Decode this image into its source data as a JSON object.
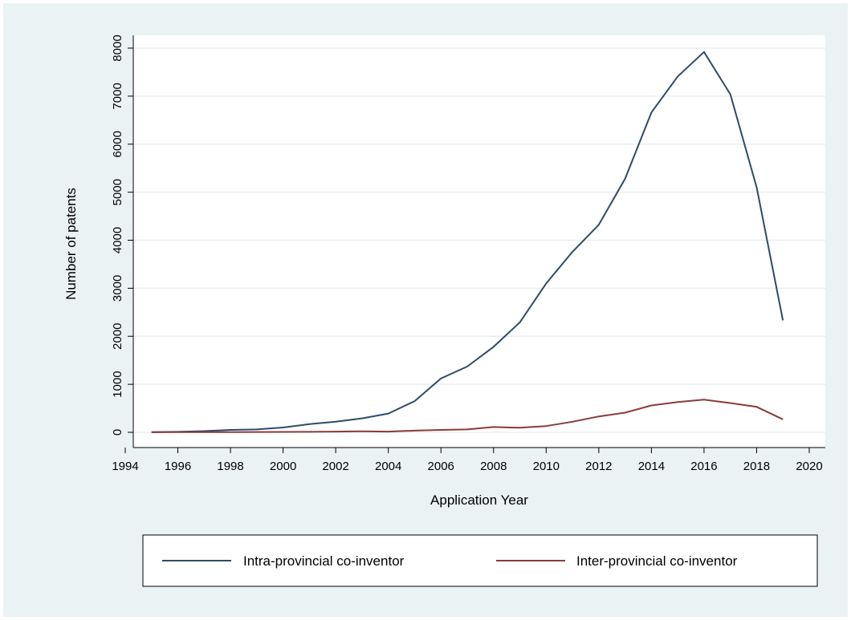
{
  "chart_data": {
    "type": "line",
    "title": "",
    "xlabel": "Application Year",
    "ylabel": "Number of patents",
    "xlim": [
      1994,
      2020
    ],
    "ylim": [
      0,
      8000
    ],
    "xticks": [
      1994,
      1996,
      1998,
      2000,
      2002,
      2004,
      2006,
      2008,
      2010,
      2012,
      2014,
      2016,
      2018,
      2020
    ],
    "yticks": [
      0,
      1000,
      2000,
      3000,
      4000,
      5000,
      6000,
      7000,
      8000
    ],
    "grid": true,
    "legend_position": "bottom",
    "x": [
      1995,
      1996,
      1997,
      1998,
      1999,
      2000,
      2001,
      2002,
      2003,
      2004,
      2005,
      2006,
      2007,
      2008,
      2009,
      2010,
      2011,
      2012,
      2013,
      2014,
      2015,
      2016,
      2017,
      2018,
      2019
    ],
    "series": [
      {
        "name": "Intra-provincial co-inventor",
        "color": "#2e4a6b",
        "values": [
          5,
          10,
          25,
          50,
          60,
          100,
          170,
          220,
          290,
          390,
          650,
          1120,
          1370,
          1780,
          2290,
          3100,
          3760,
          4320,
          5280,
          6660,
          7410,
          7920,
          7040,
          5100,
          2330
        ]
      },
      {
        "name": "Inter-provincial co-inventor",
        "color": "#8a3a3a",
        "values": [
          2,
          3,
          4,
          5,
          6,
          8,
          10,
          15,
          20,
          15,
          35,
          50,
          60,
          110,
          95,
          130,
          220,
          330,
          410,
          560,
          630,
          680,
          610,
          530,
          270
        ]
      }
    ]
  }
}
